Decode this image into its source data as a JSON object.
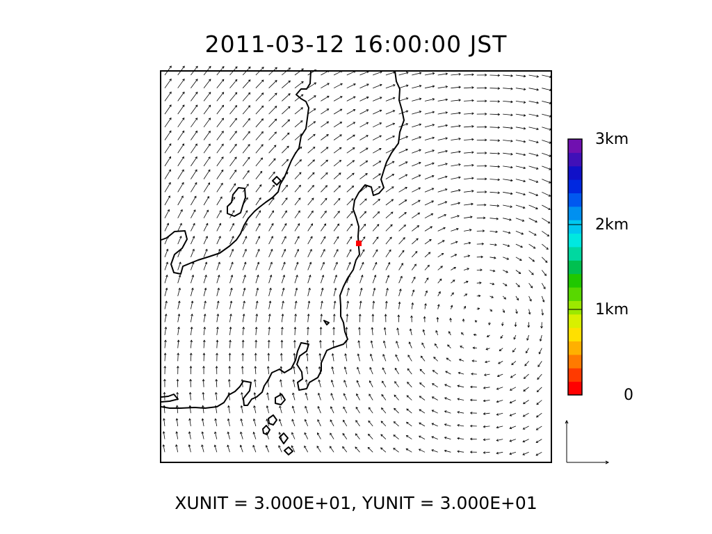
{
  "title": "2011-03-12 16:00:00 JST",
  "footer": "XUNIT = 3.000E+01, YUNIT = 3.000E+01",
  "colorbar": {
    "labels": [
      "3km",
      "2km",
      "1km",
      "0"
    ],
    "colors": [
      "#ff0000",
      "#ff3a00",
      "#ff7a00",
      "#ffb000",
      "#ffe000",
      "#d8f000",
      "#9ce800",
      "#58d800",
      "#20c800",
      "#00c050",
      "#00d8a0",
      "#00e8e0",
      "#00c8f0",
      "#0090f0",
      "#0058f0",
      "#0028e0",
      "#1010c8",
      "#4010b8",
      "#7010b0"
    ]
  },
  "map": {
    "marker_color": "#ff0000",
    "coast_color": "#000000",
    "wind_arrow_color": "#000000"
  },
  "reference_vector_icon": "reference-vector-icon"
}
